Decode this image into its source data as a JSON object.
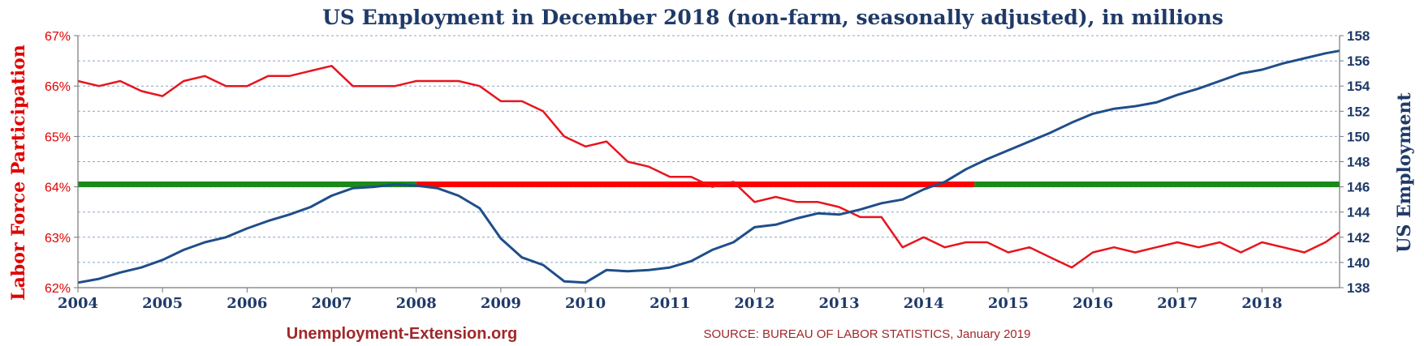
{
  "colors": {
    "title": "#1f3a68",
    "participation": "#e8141e",
    "employment": "#1f4e89",
    "reference_green": "#1a8a1a",
    "reference_red": "#ff0000",
    "grid": "#8aa4c8",
    "footer": "#a0282a"
  },
  "chart_data": {
    "type": "line",
    "title": "US Employment in December 2018 (non-farm, seasonally adjusted), in millions",
    "ylabel_left": "Labor Force Participation",
    "ylabel_right": "US Employment",
    "xlim": [
      2004,
      2018.917
    ],
    "ylim_left": [
      62,
      67
    ],
    "ylim_right": [
      138,
      158
    ],
    "x_ticks": [
      "2004",
      "2005",
      "2006",
      "2007",
      "2008",
      "2009",
      "2010",
      "2011",
      "2012",
      "2013",
      "2014",
      "2015",
      "2016",
      "2017",
      "2018"
    ],
    "left_ticks": [
      "62%",
      "63%",
      "64%",
      "65%",
      "66%",
      "67%"
    ],
    "right_ticks": [
      "138",
      "140",
      "142",
      "144",
      "146",
      "148",
      "150",
      "152",
      "154",
      "156",
      "158"
    ],
    "grid": true,
    "reference_line": {
      "value": 146.2,
      "axis": "right",
      "segments": [
        {
          "color": "green",
          "from": 2004,
          "to": 2008.0
        },
        {
          "color": "red",
          "from": 2008.0,
          "to": 2014.6
        },
        {
          "color": "green",
          "from": 2014.6,
          "to": 2018.917
        }
      ]
    },
    "series": [
      {
        "name": "Labor Force Participation",
        "axis": "left",
        "x": [
          2004,
          2004.25,
          2004.5,
          2004.75,
          2005,
          2005.25,
          2005.5,
          2005.75,
          2006,
          2006.25,
          2006.5,
          2006.75,
          2007,
          2007.25,
          2007.5,
          2007.75,
          2008,
          2008.25,
          2008.5,
          2008.75,
          2009,
          2009.25,
          2009.5,
          2009.75,
          2010,
          2010.25,
          2010.5,
          2010.75,
          2011,
          2011.25,
          2011.5,
          2011.75,
          2012,
          2012.25,
          2012.5,
          2012.75,
          2013,
          2013.25,
          2013.5,
          2013.75,
          2014,
          2014.25,
          2014.5,
          2014.75,
          2015,
          2015.25,
          2015.5,
          2015.75,
          2016,
          2016.25,
          2016.5,
          2016.75,
          2017,
          2017.25,
          2017.5,
          2017.75,
          2018,
          2018.25,
          2018.5,
          2018.75,
          2018.917
        ],
        "values": [
          66.1,
          66.0,
          66.1,
          65.9,
          65.8,
          66.1,
          66.2,
          66.0,
          66.0,
          66.2,
          66.2,
          66.3,
          66.4,
          66.0,
          66.0,
          66.0,
          66.1,
          66.1,
          66.1,
          66.0,
          65.7,
          65.7,
          65.5,
          65.0,
          64.8,
          64.9,
          64.5,
          64.4,
          64.2,
          64.2,
          64.0,
          64.1,
          63.7,
          63.8,
          63.7,
          63.7,
          63.6,
          63.4,
          63.4,
          62.8,
          63.0,
          62.8,
          62.9,
          62.9,
          62.7,
          62.8,
          62.6,
          62.4,
          62.7,
          62.8,
          62.7,
          62.8,
          62.9,
          62.8,
          62.9,
          62.7,
          62.9,
          62.8,
          62.7,
          62.9,
          63.1
        ]
      },
      {
        "name": "US Employment",
        "axis": "right",
        "x": [
          2004,
          2004.25,
          2004.5,
          2004.75,
          2005,
          2005.25,
          2005.5,
          2005.75,
          2006,
          2006.25,
          2006.5,
          2006.75,
          2007,
          2007.25,
          2007.5,
          2007.75,
          2008,
          2008.25,
          2008.5,
          2008.75,
          2009,
          2009.25,
          2009.5,
          2009.75,
          2010,
          2010.25,
          2010.5,
          2010.75,
          2011,
          2011.25,
          2011.5,
          2011.75,
          2012,
          2012.25,
          2012.5,
          2012.75,
          2013,
          2013.25,
          2013.5,
          2013.75,
          2014,
          2014.25,
          2014.5,
          2014.75,
          2015,
          2015.25,
          2015.5,
          2015.75,
          2016,
          2016.25,
          2016.5,
          2016.75,
          2017,
          2017.25,
          2017.5,
          2017.75,
          2018,
          2018.25,
          2018.5,
          2018.75,
          2018.917
        ],
        "values": [
          138.4,
          138.7,
          139.2,
          139.6,
          140.2,
          141.0,
          141.6,
          142.0,
          142.7,
          143.3,
          143.8,
          144.4,
          145.3,
          145.9,
          146.0,
          146.2,
          146.1,
          145.9,
          145.3,
          144.3,
          141.9,
          140.4,
          139.8,
          138.5,
          138.4,
          139.4,
          139.3,
          139.4,
          139.6,
          140.1,
          141.0,
          141.6,
          142.8,
          143.0,
          143.5,
          143.9,
          143.8,
          144.2,
          144.7,
          145.0,
          145.8,
          146.4,
          147.4,
          148.2,
          148.9,
          149.6,
          150.3,
          151.1,
          151.8,
          152.2,
          152.4,
          152.7,
          153.3,
          153.8,
          154.4,
          155.0,
          155.3,
          155.8,
          156.2,
          156.6,
          156.8
        ]
      }
    ]
  },
  "footer": {
    "site": "Unemployment-Extension.org",
    "source": "SOURCE: BUREAU OF LABOR STATISTICS,  January 2019"
  }
}
